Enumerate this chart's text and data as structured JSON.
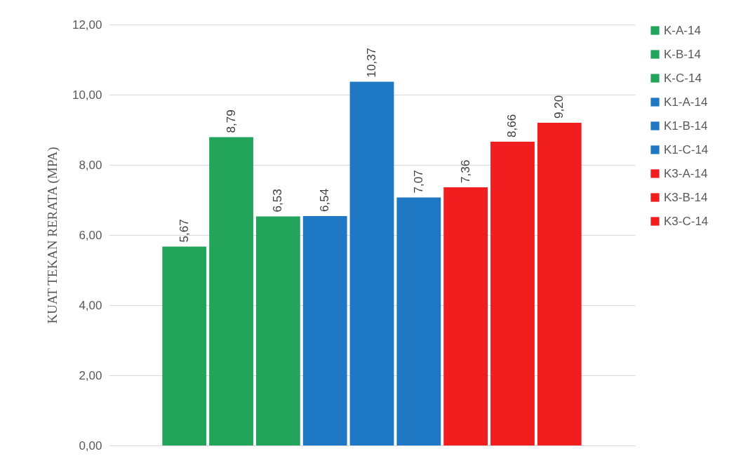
{
  "chart_data": {
    "type": "bar",
    "ylabel": "KUAT TEKAN RERATA  (MPA)",
    "categories": [
      null
    ],
    "series": [
      {
        "name": "K-A-14",
        "color": "#22a55a",
        "values": [
          5.67
        ],
        "value_labels": [
          "5,67"
        ]
      },
      {
        "name": "K-B-14",
        "color": "#22a55a",
        "values": [
          8.79
        ],
        "value_labels": [
          "8,79"
        ]
      },
      {
        "name": "K-C-14",
        "color": "#22a55a",
        "values": [
          6.53
        ],
        "value_labels": [
          "6,53"
        ]
      },
      {
        "name": "K1-A-14",
        "color": "#1f78c4",
        "values": [
          6.54
        ],
        "value_labels": [
          "6,54"
        ]
      },
      {
        "name": "K1-B-14",
        "color": "#1f78c4",
        "values": [
          10.37
        ],
        "value_labels": [
          "10,37"
        ]
      },
      {
        "name": "K1-C-14",
        "color": "#1f78c4",
        "values": [
          7.07
        ],
        "value_labels": [
          "7,07"
        ]
      },
      {
        "name": "K3-A-14",
        "color": "#f01e1e",
        "values": [
          7.36
        ],
        "value_labels": [
          "7,36"
        ]
      },
      {
        "name": "K3-B-14",
        "color": "#f01e1e",
        "values": [
          8.66
        ],
        "value_labels": [
          "8,66"
        ]
      },
      {
        "name": "K3-C-14",
        "color": "#f01e1e",
        "values": [
          9.2
        ],
        "value_labels": [
          "9,20"
        ]
      }
    ],
    "ylim": [
      0,
      12
    ],
    "yticks": [
      {
        "value": 0,
        "label": "0,00"
      },
      {
        "value": 2,
        "label": "2,00"
      },
      {
        "value": 4,
        "label": "4,00"
      },
      {
        "value": 6,
        "label": "6,00"
      },
      {
        "value": 8,
        "label": "8,00"
      },
      {
        "value": 10,
        "label": "10,00"
      },
      {
        "value": 12,
        "label": "12,00"
      }
    ],
    "grid": "y",
    "legend": "right"
  }
}
